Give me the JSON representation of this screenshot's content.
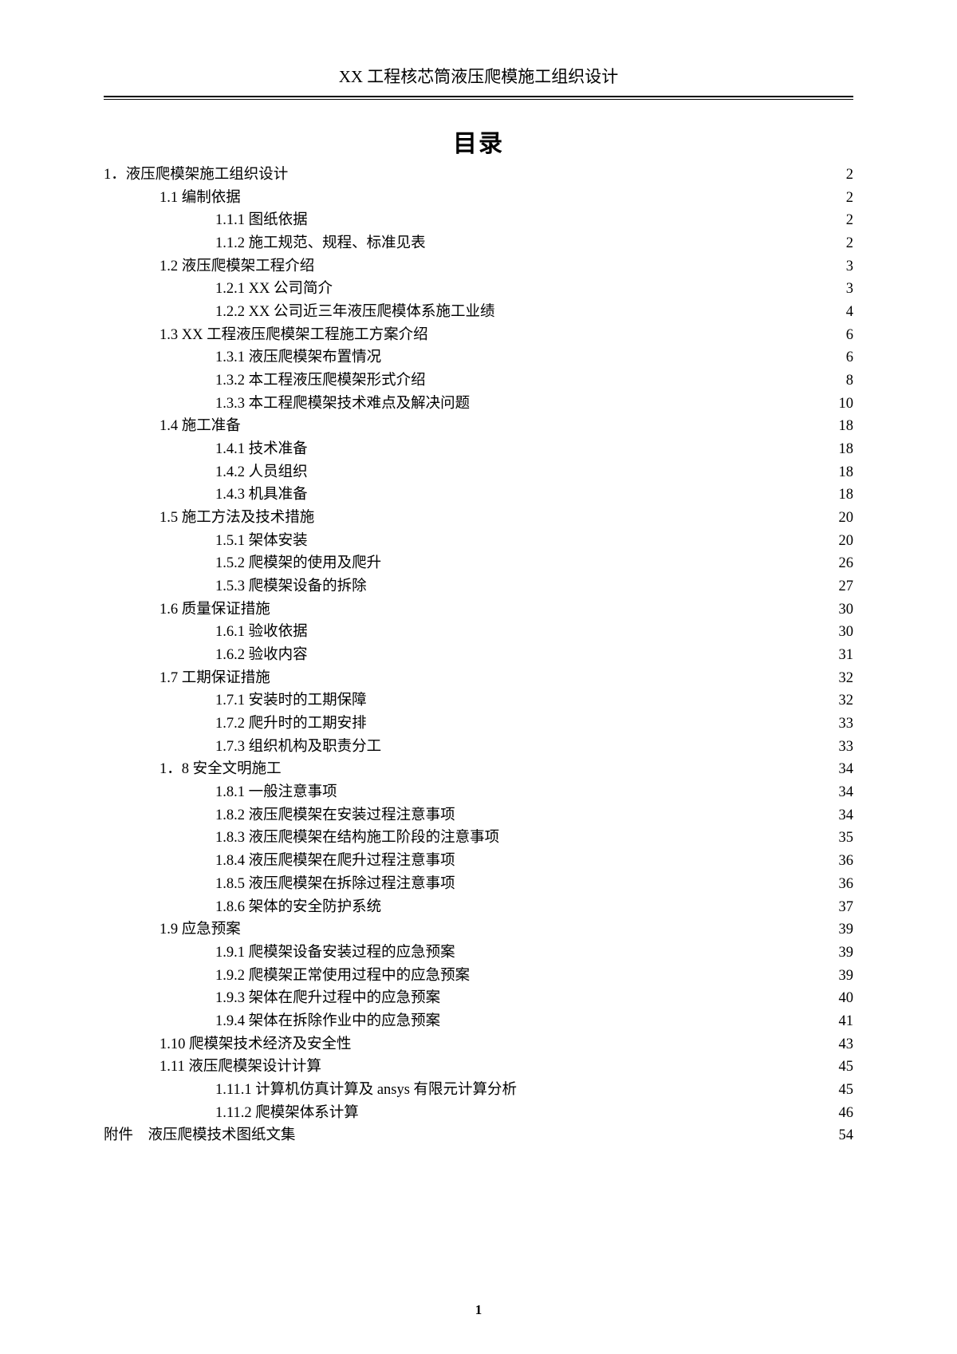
{
  "header": "XX 工程核芯筒液压爬模施工组织设计",
  "toc_title": "目录",
  "footer_page": "1",
  "entries": [
    {
      "level": 0,
      "label": "1．液压爬模架施工组织设计",
      "leader": "dots",
      "page": "2"
    },
    {
      "level": 1,
      "label": "1.1 编制依据",
      "leader": "wide-dots",
      "page": "2"
    },
    {
      "level": 2,
      "label": "1.1.1 图纸依据",
      "leader": "dots",
      "page": "2"
    },
    {
      "level": 2,
      "label": "1.1.2 施工规范、规程、标准见表",
      "leader": "dots",
      "page": "2"
    },
    {
      "level": 1,
      "label": "1.2 液压爬模架工程介绍",
      "leader": "wide-dots",
      "page": "3"
    },
    {
      "level": 2,
      "label": "1.2.1 XX 公司简介",
      "leader": "dots",
      "page": "3"
    },
    {
      "level": 2,
      "label": "1.2.2 XX 公司近三年液压爬模体系施工业绩",
      "leader": "dots",
      "page": "4"
    },
    {
      "level": 1,
      "label": "1.3 XX 工程液压爬模架工程施工方案介绍",
      "leader": "wide-dots",
      "page": "6"
    },
    {
      "level": 2,
      "label": "1.3.1 液压爬模架布置情况",
      "leader": "dots",
      "page": "6"
    },
    {
      "level": 2,
      "label": "1.3.2 本工程液压爬模架形式介绍",
      "leader": "dots",
      "page": "8"
    },
    {
      "level": 2,
      "label": "1.3.3 本工程爬模架技术难点及解决问题",
      "leader": "dots",
      "page": "10"
    },
    {
      "level": 1,
      "label": "1.4 施工准备",
      "leader": "wide-dots",
      "page": "18"
    },
    {
      "level": 2,
      "label": "1.4.1 技术准备",
      "leader": "dots",
      "page": "18"
    },
    {
      "level": 2,
      "label": "1.4.2 人员组织",
      "leader": "dots",
      "page": "18"
    },
    {
      "level": 2,
      "label": "1.4.3 机具准备",
      "leader": "dots",
      "page": "18"
    },
    {
      "level": 1,
      "label": "1.5 施工方法及技术措施",
      "leader": "wide-dots",
      "page": "20"
    },
    {
      "level": 2,
      "label": "1.5.1 架体安装",
      "leader": "dots",
      "page": "20"
    },
    {
      "level": 2,
      "label": "1.5.2 爬模架的使用及爬升",
      "leader": "dots",
      "page": "26"
    },
    {
      "level": 2,
      "label": "1.5.3 爬模架设备的拆除",
      "leader": "dots",
      "page": "27"
    },
    {
      "level": 1,
      "label": "1.6 质量保证措施",
      "leader": "wide-dots",
      "page": "30"
    },
    {
      "level": 2,
      "label": "1.6.1 验收依据",
      "leader": "dots",
      "page": "30"
    },
    {
      "level": 2,
      "label": "1.6.2 验收内容",
      "leader": "dots",
      "page": "31"
    },
    {
      "level": 1,
      "label": "1.7 工期保证措施",
      "leader": "wide-dots",
      "page": "32"
    },
    {
      "level": 2,
      "label": "1.7.1 安装时的工期保障",
      "leader": "dots",
      "page": "32"
    },
    {
      "level": 2,
      "label": "1.7.2 爬升时的工期安排",
      "leader": "dots",
      "page": "33"
    },
    {
      "level": 2,
      "label": "1.7.3 组织机构及职责分工",
      "leader": "dots",
      "page": "33"
    },
    {
      "level": 1,
      "label": "1．8 安全文明施工",
      "leader": "wide-dots",
      "page": "34"
    },
    {
      "level": 2,
      "label": "1.8.1 一般注意事项",
      "leader": "dots",
      "page": "34"
    },
    {
      "level": 2,
      "label": "1.8.2 液压爬模架在安装过程注意事项",
      "leader": "dots",
      "page": "34"
    },
    {
      "level": 2,
      "label": "1.8.3 液压爬模架在结构施工阶段的注意事项",
      "leader": "dots",
      "page": "35"
    },
    {
      "level": 2,
      "label": "1.8.4 液压爬模架在爬升过程注意事项",
      "leader": "dots",
      "page": "36"
    },
    {
      "level": 2,
      "label": "1.8.5 液压爬模架在拆除过程注意事项",
      "leader": "dots",
      "page": "36"
    },
    {
      "level": 2,
      "label": "1.8.6 架体的安全防护系统",
      "leader": "dots",
      "page": "37"
    },
    {
      "level": 1,
      "label": "1.9 应急预案",
      "leader": "wide-dots",
      "page": "39"
    },
    {
      "level": 2,
      "label": "1.9.1 爬模架设备安装过程的应急预案",
      "leader": "dots",
      "page": "39"
    },
    {
      "level": 2,
      "label": "1.9.2 爬模架正常使用过程中的应急预案",
      "leader": "dots",
      "page": "39"
    },
    {
      "level": 2,
      "label": "1.9.3 架体在爬升过程中的应急预案",
      "leader": "dots",
      "page": "40"
    },
    {
      "level": 2,
      "label": "1.9.4 架体在拆除作业中的应急预案",
      "leader": "dots",
      "page": "41"
    },
    {
      "level": 1,
      "label": "1.10 爬模架技术经济及安全性",
      "leader": "wide-dots",
      "page": "43"
    },
    {
      "level": 1,
      "label": "1.11 液压爬模架设计计算",
      "leader": "wide-dots",
      "page": "45"
    },
    {
      "level": 2,
      "label": "1.11.1 计算机仿真计算及 ansys 有限元计算分析",
      "leader": "dots",
      "page": "45"
    },
    {
      "level": 2,
      "label": "1.11.2 爬模架体系计算",
      "leader": "dots",
      "page": "46"
    },
    {
      "level": 0,
      "label": "附件　液压爬模技术图纸文集",
      "leader": "dots",
      "page": "54"
    }
  ]
}
